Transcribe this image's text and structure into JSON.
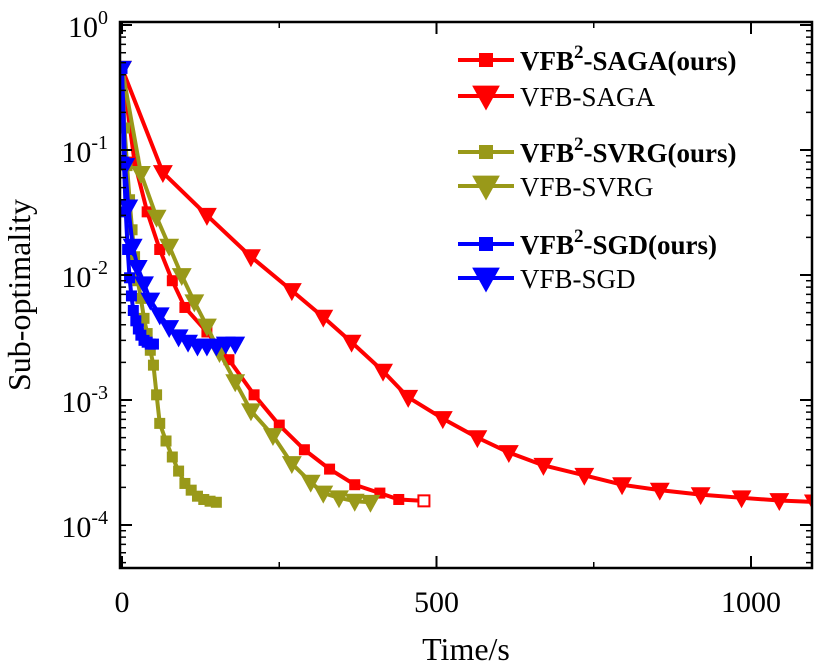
{
  "chart_data": {
    "type": "line",
    "xlabel": "Time/s",
    "ylabel": "Sub-optimality",
    "xscale": "linear",
    "yscale": "log",
    "xlim": [
      0,
      1100
    ],
    "ylim": [
      5e-05,
      1
    ],
    "x_ticks": [
      0,
      500,
      1000
    ],
    "x_tick_labels": [
      "0",
      "500",
      "1000"
    ],
    "y_ticks": [
      1,
      0.1,
      0.01,
      0.001,
      0.0001
    ],
    "y_tick_labels": [
      {
        "base": "10",
        "exp": "0"
      },
      {
        "base": "10",
        "exp": "-1"
      },
      {
        "base": "10",
        "exp": "-2"
      },
      {
        "base": "10",
        "exp": "-3"
      },
      {
        "base": "10",
        "exp": "-4"
      }
    ],
    "legend_position": "top-right",
    "series": [
      {
        "name": "VFB²-SAGA(ours)",
        "legend": {
          "prefix": "VFB",
          "sup": "2",
          "suffix": "-SAGA(ours)",
          "bold": true
        },
        "color": "#ff0000",
        "marker": "square",
        "x": [
          0,
          20,
          40,
          60,
          80,
          100,
          135,
          170,
          210,
          250,
          290,
          330,
          370,
          410,
          440,
          480
        ],
        "y": [
          0.45,
          0.08,
          0.032,
          0.016,
          0.009,
          0.0055,
          0.0035,
          0.0021,
          0.0011,
          0.00063,
          0.0004,
          0.00028,
          0.00021,
          0.00018,
          0.00016,
          0.000156
        ]
      },
      {
        "name": "VFB-SAGA",
        "legend": {
          "prefix": "VFB-SAGA",
          "sup": "",
          "suffix": "",
          "bold": false
        },
        "color": "#ff0000",
        "marker": "triangle-down",
        "x": [
          0,
          65,
          135,
          205,
          270,
          320,
          365,
          415,
          455,
          510,
          565,
          615,
          670,
          735,
          795,
          855,
          920,
          985,
          1045,
          1100
        ],
        "y": [
          0.45,
          0.066,
          0.03,
          0.014,
          0.0075,
          0.0046,
          0.0029,
          0.0017,
          0.00105,
          0.00071,
          0.0005,
          0.00038,
          0.0003,
          0.00025,
          0.00021,
          0.00019,
          0.000175,
          0.000165,
          0.000157,
          0.000153
        ]
      },
      {
        "name": "VFB²-SVRG(ours)",
        "legend": {
          "prefix": "VFB",
          "sup": "2",
          "suffix": "-SVRG(ours)",
          "bold": true
        },
        "color": "#999919",
        "marker": "square",
        "x": [
          0,
          4,
          8,
          12,
          16,
          20,
          25,
          30,
          35,
          40,
          45,
          50,
          55,
          60,
          70,
          80,
          90,
          100,
          110,
          120,
          130,
          140,
          150
        ],
        "y": [
          0.45,
          0.15,
          0.075,
          0.04,
          0.023,
          0.014,
          0.009,
          0.0065,
          0.0045,
          0.0034,
          0.0025,
          0.0019,
          0.0011,
          0.00065,
          0.00047,
          0.00035,
          0.00027,
          0.000215,
          0.00019,
          0.00017,
          0.00016,
          0.000155,
          0.000152
        ]
      },
      {
        "name": "VFB-SVRG",
        "legend": {
          "prefix": "VFB-SVRG",
          "sup": "",
          "suffix": "",
          "bold": false
        },
        "color": "#999919",
        "marker": "triangle-down",
        "x": [
          0,
          30,
          55,
          75,
          95,
          115,
          135,
          155,
          180,
          205,
          240,
          270,
          300,
          320,
          345,
          370,
          395
        ],
        "y": [
          0.45,
          0.065,
          0.029,
          0.017,
          0.0099,
          0.0061,
          0.0039,
          0.0024,
          0.0014,
          0.00082,
          0.00052,
          0.00031,
          0.00022,
          0.00018,
          0.000165,
          0.000155,
          0.000152
        ]
      },
      {
        "name": "VFB²-SGD(ours)",
        "legend": {
          "prefix": "VFB",
          "sup": "2",
          "suffix": "-SGD(ours)",
          "bold": true
        },
        "color": "#0000ff",
        "marker": "square",
        "x": [
          0,
          3,
          6,
          9,
          12,
          15,
          18,
          22,
          26,
          30,
          35,
          40,
          45,
          50
        ],
        "y": [
          0.45,
          0.08,
          0.032,
          0.016,
          0.0095,
          0.0068,
          0.0052,
          0.0043,
          0.0037,
          0.0033,
          0.003,
          0.0029,
          0.0028,
          0.0028
        ]
      },
      {
        "name": "VFB-SGD",
        "legend": {
          "prefix": "VFB-SGD",
          "sup": "",
          "suffix": "",
          "bold": false
        },
        "color": "#0000ff",
        "marker": "triangle-down",
        "x": [
          0,
          5,
          10,
          17,
          25,
          35,
          45,
          60,
          75,
          90,
          105,
          120,
          135,
          150,
          165,
          180
        ],
        "y": [
          0.45,
          0.075,
          0.035,
          0.017,
          0.0115,
          0.0085,
          0.0063,
          0.0048,
          0.0038,
          0.0032,
          0.0029,
          0.0027,
          0.0027,
          0.0027,
          0.0028,
          0.0028
        ]
      }
    ]
  }
}
